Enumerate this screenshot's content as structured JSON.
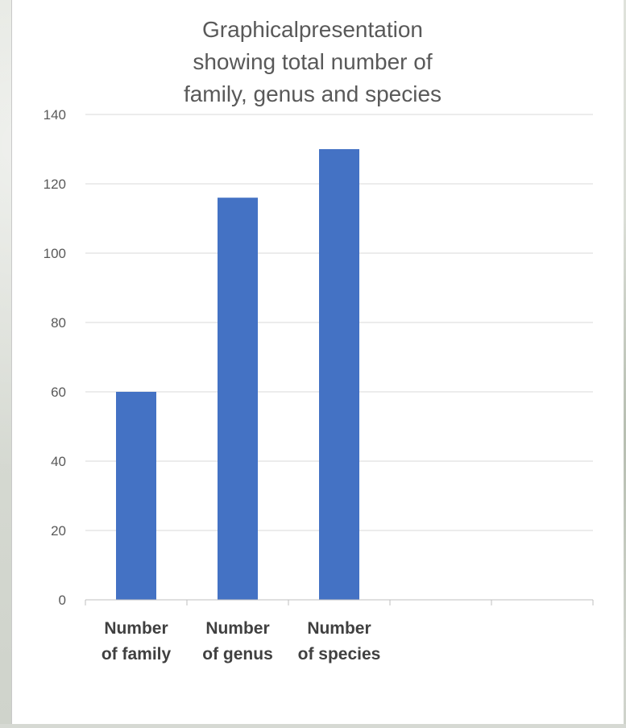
{
  "chart_data": {
    "type": "bar",
    "title_lines": [
      "Graphicalpresentation",
      "showing total number of",
      "family, genus and species"
    ],
    "categories": [
      "Number of family",
      "Number of genus",
      "Number of species"
    ],
    "category_label_lines": [
      [
        "Number",
        "of family"
      ],
      [
        "Number",
        "of genus"
      ],
      [
        "Number",
        "of species"
      ]
    ],
    "empty_slots": 2,
    "values": [
      60,
      116,
      130
    ],
    "ylim": [
      0,
      140
    ],
    "y_ticks": [
      0,
      20,
      40,
      60,
      80,
      100,
      120,
      140
    ],
    "grid": true,
    "legend": "none",
    "bar_color": "#4472C4",
    "grid_color": "#d9d9d9",
    "xlabel": "",
    "ylabel": ""
  }
}
